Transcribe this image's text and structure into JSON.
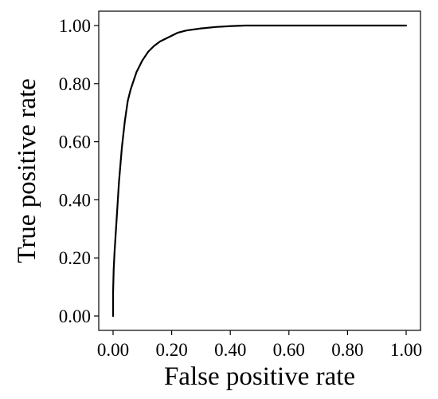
{
  "chart_data": {
    "type": "line",
    "title": "",
    "xlabel": "False positive rate",
    "ylabel": "True positive rate",
    "xlim": [
      0,
      1
    ],
    "ylim": [
      0,
      1
    ],
    "x_ticks": [
      {
        "value": 0.0,
        "label": "0.00"
      },
      {
        "value": 0.2,
        "label": "0.20"
      },
      {
        "value": 0.4,
        "label": "0.40"
      },
      {
        "value": 0.6,
        "label": "0.60"
      },
      {
        "value": 0.8,
        "label": "0.80"
      },
      {
        "value": 1.0,
        "label": "1.00"
      }
    ],
    "y_ticks": [
      {
        "value": 0.0,
        "label": "0.00"
      },
      {
        "value": 0.2,
        "label": "0.20"
      },
      {
        "value": 0.4,
        "label": "0.40"
      },
      {
        "value": 0.6,
        "label": "0.60"
      },
      {
        "value": 0.8,
        "label": "0.80"
      },
      {
        "value": 1.0,
        "label": "1.00"
      }
    ],
    "grid": false,
    "series": [
      {
        "color": "#000000",
        "x": [
          0.0,
          0.0,
          0.002,
          0.005,
          0.01,
          0.015,
          0.02,
          0.03,
          0.04,
          0.05,
          0.06,
          0.08,
          0.1,
          0.12,
          0.14,
          0.16,
          0.18,
          0.2,
          0.22,
          0.25,
          0.3,
          0.35,
          0.4,
          0.45,
          0.5,
          0.6,
          0.8,
          1.0
        ],
        "y": [
          0.0,
          0.08,
          0.16,
          0.22,
          0.3,
          0.38,
          0.46,
          0.58,
          0.67,
          0.74,
          0.78,
          0.84,
          0.88,
          0.91,
          0.93,
          0.945,
          0.955,
          0.965,
          0.975,
          0.983,
          0.99,
          0.995,
          0.998,
          1.0,
          1.0,
          1.0,
          1.0,
          1.0
        ]
      }
    ]
  }
}
